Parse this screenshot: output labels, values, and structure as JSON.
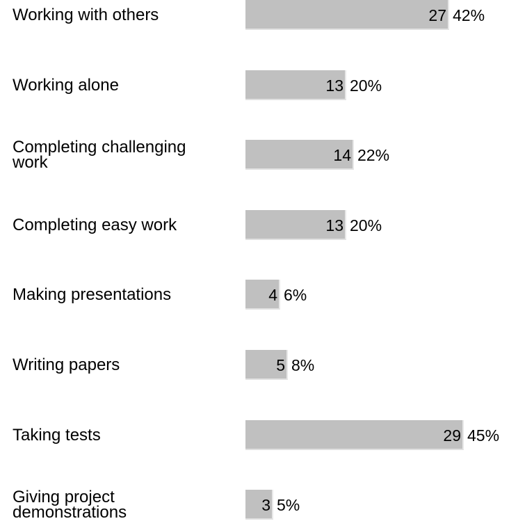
{
  "chart_data": {
    "type": "bar",
    "orientation": "horizontal",
    "categories": [
      "Working with others",
      "Working alone",
      "Completing challenging work",
      "Completing easy work",
      "Making presentations",
      "Writing papers",
      "Taking tests",
      "Giving project demonstrations"
    ],
    "values": [
      27,
      13,
      14,
      13,
      4,
      5,
      29,
      3
    ],
    "percent_labels": [
      "42%",
      "20%",
      "22%",
      "20%",
      "6%",
      "8%",
      "45%",
      "5%"
    ],
    "title": "",
    "xlabel": "",
    "ylabel": "",
    "grid": false,
    "legend": "none",
    "colors": {
      "bar": "#c0c0c0",
      "text": "#000000",
      "background": "#ffffff"
    }
  }
}
